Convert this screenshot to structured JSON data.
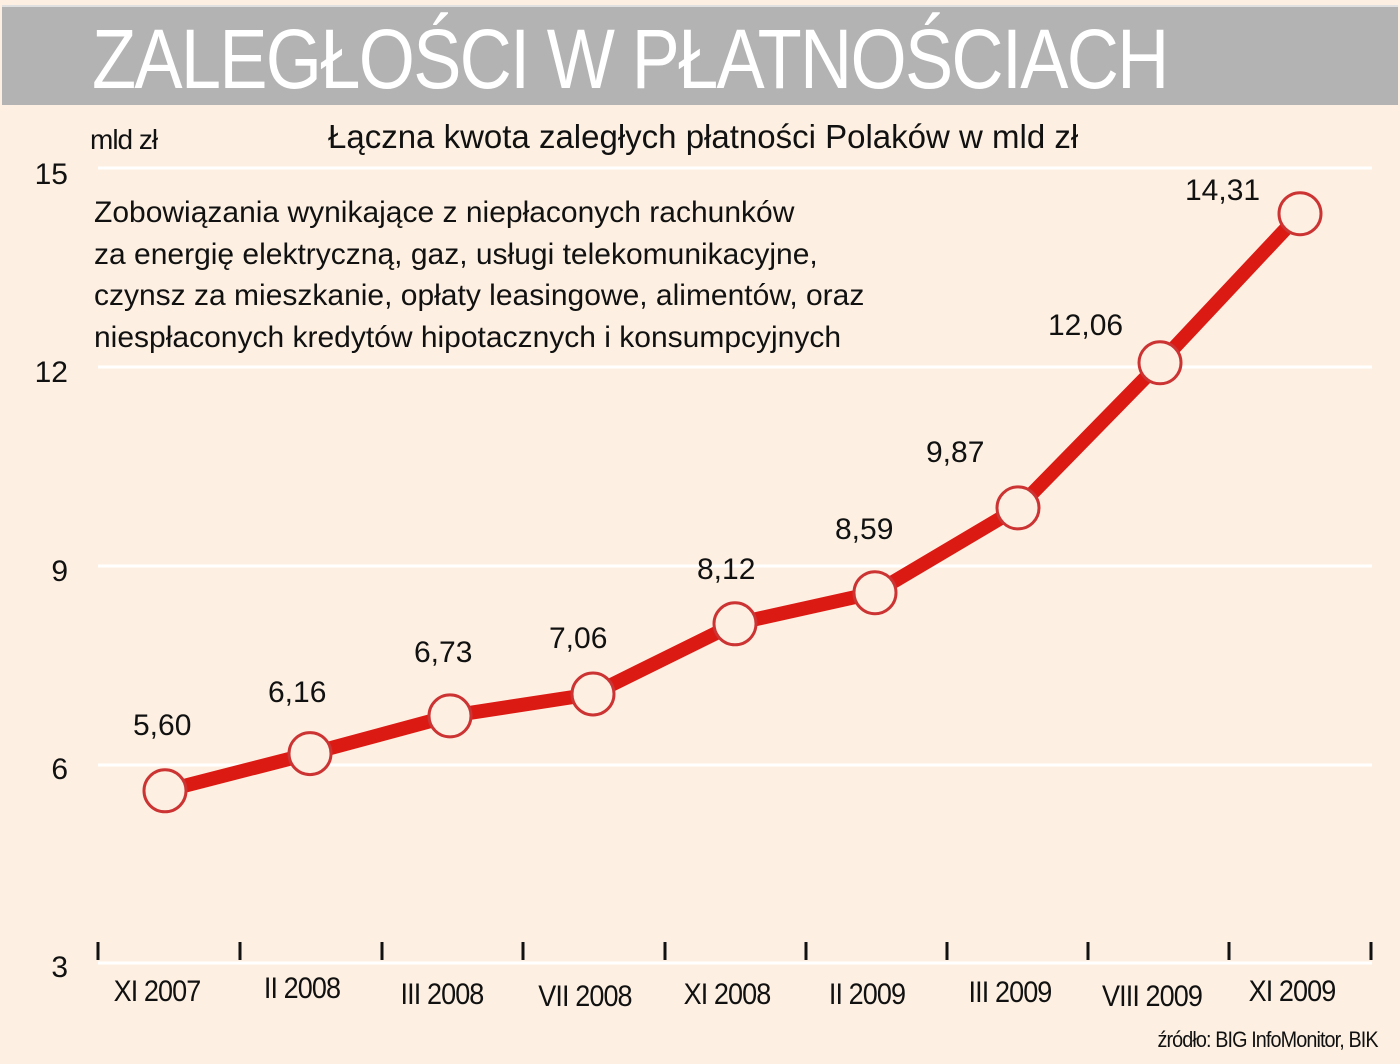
{
  "header": {
    "title": "ZALEGŁOŚCI W PŁATNOŚCIACH",
    "banner_color": "#b3b3b3"
  },
  "chart_data": {
    "type": "line",
    "title": "Łączna kwota zaległych płatności Polaków w mld zł",
    "ylabel": "mld zł",
    "xlabel": "",
    "categories": [
      "XI 2007",
      "II 2008",
      "III 2008",
      "VII 2008",
      "XI 2008",
      "II 2009",
      "III 2009",
      "VIII 2009",
      "XI 2009"
    ],
    "series": [
      {
        "name": "Łączna kwota zaległych płatności (mld zł)",
        "values": [
          5.6,
          6.16,
          6.73,
          7.06,
          8.12,
          8.59,
          9.87,
          12.06,
          14.31
        ],
        "labels": [
          "5,60",
          "6,16",
          "6,73",
          "7,06",
          "8,12",
          "8,59",
          "9,87",
          "12,06",
          "14,31"
        ],
        "color": "#dc1a14"
      }
    ],
    "ylim": [
      3,
      15
    ],
    "yticks": [
      "3",
      "6",
      "9",
      "12",
      "15"
    ],
    "grid": true,
    "legend": "none",
    "annotation": [
      "Zobowiązania wynikające z niepłaconych rachunków",
      "za energię elektryczną, gaz, usługi telekomunikacyjne,",
      "czynsz za mieszkanie, opłaty leasingowe, alimentów, oraz",
      "niespłaconych kredytów hipotacznych i konsumpcyjnych"
    ],
    "source": "źródło: BIG InfoMonitor, BIK",
    "background_color": "#fdf0e2",
    "marker_border_color": "#cc3333"
  }
}
